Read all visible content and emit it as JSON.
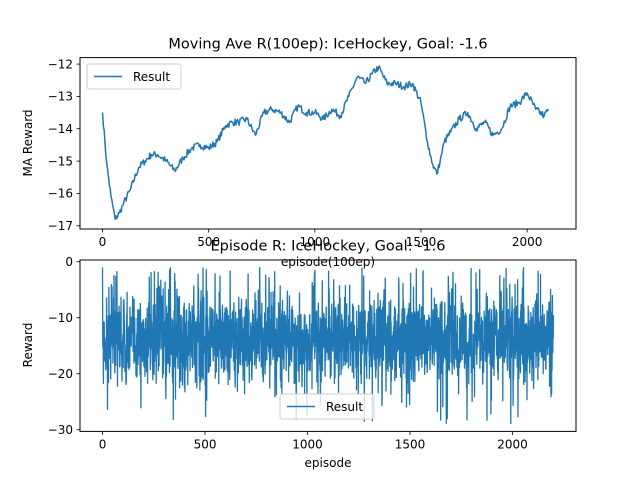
{
  "chart_data": [
    {
      "type": "line",
      "title": "Moving Ave R(100ep): IceHockey, Goal: -1.6",
      "xlabel": "episode(100ep)",
      "ylabel": "MA Reward",
      "xlim": [
        -106,
        2230
      ],
      "ylim": [
        -17.1,
        -11.8
      ],
      "xticks": [
        0,
        500,
        1000,
        1500,
        2000
      ],
      "yticks": [
        -17,
        -16,
        -15,
        -14,
        -13,
        -12
      ],
      "legend": {
        "position": "upper left",
        "labels": [
          "Result"
        ]
      },
      "grid": false,
      "color": "#1f77b4",
      "series": [
        {
          "name": "Result",
          "x": [
            0,
            20,
            40,
            60,
            80,
            100,
            130,
            170,
            200,
            230,
            260,
            300,
            340,
            380,
            420,
            460,
            500,
            540,
            580,
            610,
            640,
            680,
            720,
            760,
            800,
            840,
            880,
            920,
            960,
            1000,
            1040,
            1080,
            1120,
            1160,
            1200,
            1240,
            1270,
            1300,
            1340,
            1380,
            1420,
            1460,
            1500,
            1530,
            1555,
            1575,
            1590,
            1610,
            1640,
            1680,
            1720,
            1760,
            1800,
            1840,
            1880,
            1920,
            1960,
            2000,
            2040,
            2080,
            2100
          ],
          "y": [
            -13.5,
            -15.1,
            -16.1,
            -16.8,
            -16.6,
            -16.3,
            -15.9,
            -15.2,
            -15.0,
            -14.8,
            -14.8,
            -15.0,
            -15.3,
            -14.9,
            -14.6,
            -14.5,
            -14.6,
            -14.4,
            -13.9,
            -13.8,
            -13.8,
            -13.7,
            -14.2,
            -13.5,
            -13.4,
            -13.5,
            -13.8,
            -13.3,
            -13.5,
            -13.5,
            -13.7,
            -13.4,
            -13.6,
            -13.0,
            -12.4,
            -12.6,
            -12.3,
            -12.1,
            -12.6,
            -12.6,
            -12.7,
            -12.6,
            -13.2,
            -14.4,
            -15.1,
            -15.4,
            -15.0,
            -14.4,
            -14.1,
            -13.7,
            -13.5,
            -14.0,
            -13.8,
            -14.2,
            -14.0,
            -13.3,
            -13.2,
            -12.9,
            -13.4,
            -13.6,
            -13.4
          ]
        }
      ]
    },
    {
      "type": "line",
      "title": "Episode R: IceHockey, Goal: -1.6",
      "xlabel": "episode",
      "ylabel": "Reward",
      "xlim": [
        -110,
        2310
      ],
      "ylim": [
        -30.3,
        0.3
      ],
      "xticks": [
        0,
        500,
        1000,
        1500,
        2000
      ],
      "yticks": [
        0,
        -10,
        -20,
        -30
      ],
      "legend": {
        "position": "lower center",
        "labels": [
          "Result"
        ]
      },
      "grid": false,
      "color": "#1f77b4",
      "series": [
        {
          "name": "Result",
          "x_range": [
            0,
            2200
          ],
          "min_value": -29,
          "max_value": -1,
          "typical_range": [
            -20,
            -8
          ],
          "mean": -14
        }
      ]
    }
  ]
}
